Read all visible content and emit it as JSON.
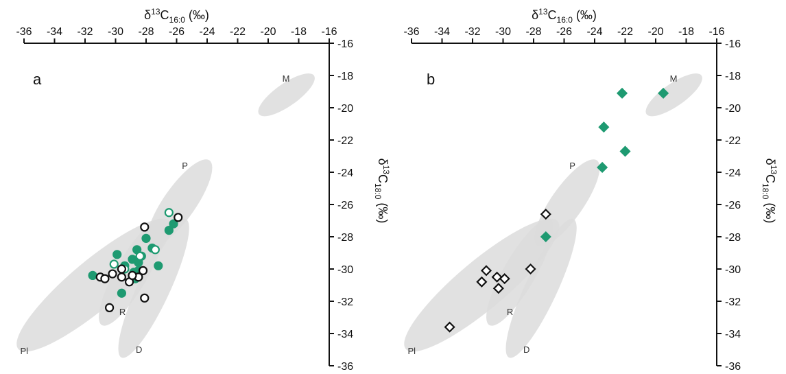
{
  "chart_data": [
    {
      "panel": "a",
      "type": "scatter",
      "xlabel": {
        "base": "δ",
        "sup": "13",
        "main": "C",
        "sub": "16:0",
        "unit": "(‰)"
      },
      "ylabel": {
        "base": "δ",
        "sup": "13",
        "main": "C",
        "sub": "18:0",
        "unit": "(‰)"
      },
      "xlim": [
        -36,
        -16
      ],
      "ylim": [
        -36,
        -16
      ],
      "xticks": [
        -36,
        -34,
        -32,
        -30,
        -28,
        -26,
        -24,
        -22,
        -20,
        -18,
        -16
      ],
      "yticks": [
        -16,
        -18,
        -20,
        -22,
        -24,
        -26,
        -28,
        -30,
        -32,
        -34,
        -36
      ],
      "x_axis_position": "top",
      "y_axis_position": "right",
      "reference_regions": [
        {
          "label": "M",
          "cx": -18.8,
          "cy": -19.2,
          "rx": 2.2,
          "ry": 0.7,
          "angle_deg": -35
        },
        {
          "label": "P",
          "cx": -25.8,
          "cy": -25.9,
          "rx": 3.4,
          "ry": 1.0,
          "angle_deg": -55
        },
        {
          "label": "R",
          "cx": -28.9,
          "cy": -30.2,
          "rx": 4.0,
          "ry": 1.0,
          "angle_deg": -60
        },
        {
          "label": "Pl",
          "cx": -31.4,
          "cy": -31.0,
          "rx": 6.5,
          "ry": 1.5,
          "angle_deg": -40
        },
        {
          "label": "D",
          "cx": -27.5,
          "cy": -31.2,
          "rx": 5.0,
          "ry": 1.0,
          "angle_deg": -65
        }
      ],
      "series": [
        {
          "marker": "circle",
          "fill": "#1e9a71",
          "stroke": "#1e9a71",
          "points": [
            [
              -31.5,
              -30.4
            ],
            [
              -29.9,
              -29.1
            ],
            [
              -29.4,
              -29.8
            ],
            [
              -28.9,
              -29.4
            ],
            [
              -28.6,
              -28.8
            ],
            [
              -28.5,
              -29.6
            ],
            [
              -28.8,
              -30.2
            ],
            [
              -28.7,
              -30.6
            ],
            [
              -28.5,
              -30.1
            ],
            [
              -28.0,
              -28.1
            ],
            [
              -27.6,
              -28.7
            ],
            [
              -27.2,
              -29.8
            ],
            [
              -26.5,
              -27.6
            ],
            [
              -26.2,
              -27.2
            ],
            [
              -29.6,
              -31.5
            ],
            [
              -28.3,
              -29.2
            ]
          ]
        },
        {
          "marker": "circle",
          "fill": "none",
          "stroke": "#1e9a71",
          "points": [
            [
              -26.5,
              -26.5
            ],
            [
              -27.4,
              -28.8
            ],
            [
              -29.4,
              -30.0
            ],
            [
              -30.1,
              -29.7
            ],
            [
              -28.4,
              -29.2
            ]
          ]
        },
        {
          "marker": "circle",
          "fill": "none",
          "stroke": "#111111",
          "points": [
            [
              -25.9,
              -26.8
            ],
            [
              -28.1,
              -27.4
            ],
            [
              -28.1,
              -31.8
            ],
            [
              -30.4,
              -32.4
            ],
            [
              -30.2,
              -30.3
            ],
            [
              -31.0,
              -30.5
            ],
            [
              -30.7,
              -30.6
            ],
            [
              -29.6,
              -30.5
            ],
            [
              -29.6,
              -30.0
            ],
            [
              -29.1,
              -30.8
            ],
            [
              -28.5,
              -30.5
            ],
            [
              -28.2,
              -30.1
            ],
            [
              -28.9,
              -30.4
            ]
          ]
        }
      ]
    },
    {
      "panel": "b",
      "type": "scatter",
      "xlabel": {
        "base": "δ",
        "sup": "13",
        "main": "C",
        "sub": "16:0",
        "unit": "(‰)"
      },
      "ylabel": {
        "base": "δ",
        "sup": "13",
        "main": "C",
        "sub": "18:0",
        "unit": "(‰)"
      },
      "xlim": [
        -36,
        -16
      ],
      "ylim": [
        -36,
        -16
      ],
      "xticks": [
        -36,
        -34,
        -32,
        -30,
        -28,
        -26,
        -24,
        -22,
        -20,
        -18,
        -16
      ],
      "yticks": [
        -16,
        -18,
        -20,
        -22,
        -24,
        -26,
        -28,
        -30,
        -32,
        -34,
        -36
      ],
      "x_axis_position": "top",
      "y_axis_position": "right",
      "reference_regions": [
        {
          "label": "M",
          "cx": -18.8,
          "cy": -19.2,
          "rx": 2.2,
          "ry": 0.7,
          "angle_deg": -35
        },
        {
          "label": "P",
          "cx": -25.8,
          "cy": -25.9,
          "rx": 3.4,
          "ry": 1.0,
          "angle_deg": -55
        },
        {
          "label": "R",
          "cx": -28.9,
          "cy": -30.2,
          "rx": 4.0,
          "ry": 1.0,
          "angle_deg": -60
        },
        {
          "label": "Pl",
          "cx": -31.4,
          "cy": -31.0,
          "rx": 6.5,
          "ry": 1.5,
          "angle_deg": -40
        },
        {
          "label": "D",
          "cx": -27.5,
          "cy": -31.2,
          "rx": 5.0,
          "ry": 1.0,
          "angle_deg": -65
        }
      ],
      "series": [
        {
          "marker": "diamond",
          "fill": "#1e9a71",
          "stroke": "#1e9a71",
          "points": [
            [
              -22.2,
              -19.1
            ],
            [
              -19.5,
              -19.1
            ],
            [
              -23.4,
              -21.2
            ],
            [
              -22.0,
              -22.7
            ],
            [
              -23.5,
              -23.7
            ],
            [
              -27.2,
              -28.0
            ]
          ]
        },
        {
          "marker": "diamond",
          "fill": "none",
          "stroke": "#111111",
          "points": [
            [
              -27.2,
              -26.6
            ],
            [
              -28.2,
              -30.0
            ],
            [
              -31.1,
              -30.1
            ],
            [
              -30.4,
              -30.5
            ],
            [
              -29.9,
              -30.6
            ],
            [
              -31.4,
              -30.8
            ],
            [
              -30.3,
              -31.2
            ],
            [
              -33.5,
              -33.6
            ]
          ]
        }
      ]
    }
  ]
}
